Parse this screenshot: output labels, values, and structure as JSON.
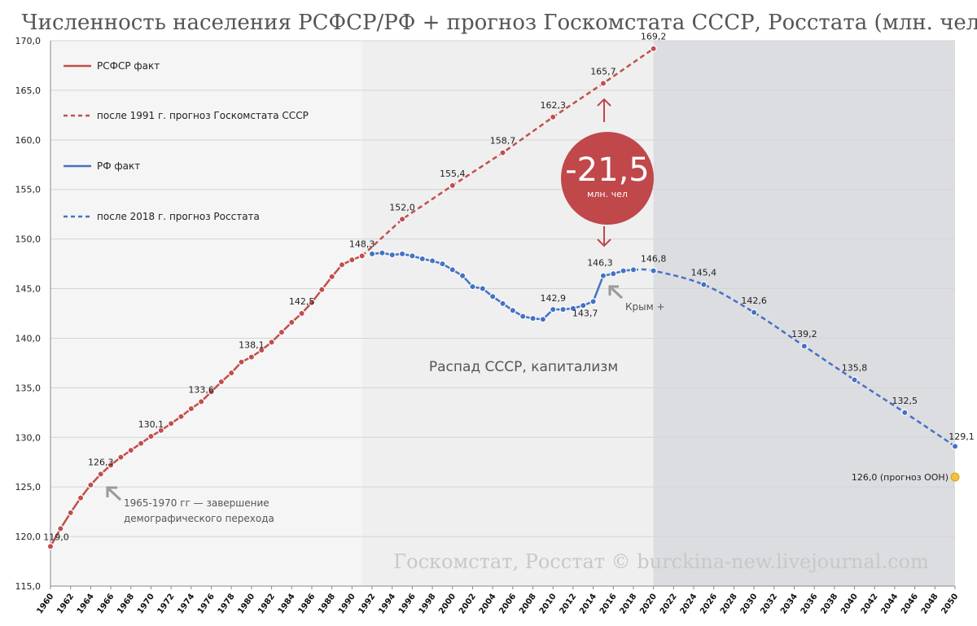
{
  "title": "Численность населения РСФСР/РФ + прогноз Госкомстата СССР, Росстата (млн. чел)",
  "colors": {
    "rsfsr": "#c0504d",
    "rf": "#4472c4",
    "region1": "#efefef",
    "region2": "#dcdde1",
    "badge": "#c0474a",
    "gold": "#f0c040"
  },
  "chart_data": {
    "type": "line",
    "title": "Численность населения РСФСР/РФ + прогноз Госкомстата СССР, Росстата (млн. чел)",
    "xlim": [
      1960,
      2050
    ],
    "ylim": [
      115,
      170
    ],
    "y_ticks": [
      "115,0",
      "120,0",
      "125,0",
      "130,0",
      "135,0",
      "140,0",
      "145,0",
      "150,0",
      "155,0",
      "160,0",
      "165,0",
      "170,0"
    ],
    "x_ticks": [
      "1960",
      "1962",
      "1964",
      "1966",
      "1968",
      "1970",
      "1972",
      "1974",
      "1976",
      "1978",
      "1980",
      "1982",
      "1984",
      "1986",
      "1988",
      "1990",
      "1992",
      "1994",
      "1996",
      "1998",
      "2000",
      "2002",
      "2004",
      "2006",
      "2008",
      "2010",
      "2012",
      "2014",
      "2016",
      "2018",
      "2020",
      "2022",
      "2024",
      "2026",
      "2028",
      "2030",
      "2032",
      "2034",
      "2036",
      "2038",
      "2040",
      "2042",
      "2044",
      "2046",
      "2048",
      "2050"
    ],
    "series": [
      {
        "name": "РСФСР факт",
        "style": "solid",
        "color": "#c0504d",
        "x": [
          1960,
          1961,
          1962,
          1963,
          1964,
          1965,
          1966,
          1967,
          1968,
          1969,
          1970,
          1971,
          1972,
          1973,
          1974,
          1975,
          1976,
          1977,
          1978,
          1979,
          1980,
          1981,
          1982,
          1983,
          1984,
          1985,
          1986,
          1987,
          1988,
          1989,
          1990,
          1991
        ],
        "y": [
          119.0,
          120.8,
          122.4,
          123.9,
          125.2,
          126.3,
          127.2,
          128.0,
          128.7,
          129.4,
          130.1,
          130.7,
          131.4,
          132.1,
          132.9,
          133.6,
          134.6,
          135.6,
          136.5,
          137.6,
          138.1,
          138.8,
          139.6,
          140.6,
          141.6,
          142.5,
          143.6,
          144.9,
          146.2,
          147.4,
          147.9,
          148.3
        ],
        "labels": {
          "1960": "119,0",
          "1965": "126,3",
          "1970": "130,1",
          "1975": "133,6",
          "1980": "138,1",
          "1985": "142,5",
          "1991": "148,3"
        }
      },
      {
        "name": "после 1991 г. прогноз Госкомстата СССР",
        "style": "dashed",
        "color": "#c0504d",
        "x": [
          1991,
          1995,
          2000,
          2005,
          2010,
          2015,
          2020
        ],
        "y": [
          148.3,
          152.0,
          155.4,
          158.7,
          162.3,
          165.7,
          169.2
        ],
        "labels": {
          "1995": "152,0",
          "2000": "155,4",
          "2005": "158,7",
          "2010": "162,3",
          "2015": "165,7",
          "2020": "169,2"
        }
      },
      {
        "name": "РФ факт",
        "style": "solid",
        "color": "#4472c4",
        "x": [
          1992,
          1993,
          1994,
          1995,
          1996,
          1997,
          1998,
          1999,
          2000,
          2001,
          2002,
          2003,
          2004,
          2005,
          2006,
          2007,
          2008,
          2009,
          2010,
          2011,
          2012,
          2013,
          2014,
          2015,
          2016,
          2017,
          2018
        ],
        "y": [
          148.5,
          148.6,
          148.4,
          148.5,
          148.3,
          148.0,
          147.8,
          147.5,
          146.9,
          146.3,
          145.2,
          145.0,
          144.2,
          143.5,
          142.8,
          142.2,
          142.0,
          141.9,
          142.9,
          142.9,
          143.0,
          143.3,
          143.7,
          146.3,
          146.5,
          146.8,
          146.9
        ],
        "labels": {
          "2010": "142,9",
          "2014": "143,7",
          "2015": "146,3"
        }
      },
      {
        "name": "после 2018 г. прогноз Росстата",
        "style": "dashed",
        "color": "#4472c4",
        "x": [
          2018,
          2020,
          2025,
          2030,
          2035,
          2040,
          2045,
          2050
        ],
        "y": [
          146.9,
          146.8,
          145.4,
          142.6,
          139.2,
          135.8,
          132.5,
          129.1
        ],
        "labels": {
          "2020": "146,8",
          "2025": "145,4",
          "2030": "142,6",
          "2035": "139,2",
          "2040": "135,8",
          "2045": "132,5",
          "2050": "129,1"
        }
      }
    ],
    "legend": [
      {
        "label": "РСФСР факт",
        "color": "#c0504d",
        "style": "solid"
      },
      {
        "label": "после 1991 г. прогноз Госкомстата  СССР",
        "color": "#c0504d",
        "style": "dashed"
      },
      {
        "label": "РФ факт",
        "color": "#4472c4",
        "style": "solid"
      },
      {
        "label": "после 2018 г. прогноз Росстата",
        "color": "#4472c4",
        "style": "dashed"
      }
    ],
    "regions": [
      {
        "from": 1991,
        "to": 2020,
        "label": "Распад СССР, капитализм"
      },
      {
        "from": 2020,
        "to": 2050,
        "label": ""
      }
    ],
    "annotations": {
      "demographic_line1": "1965-1970 гг — завершение",
      "demographic_line2": "демографического перехода",
      "crimea": "Крым +",
      "un_forecast": "126,0 (прогноз ООН)",
      "un_value": 126.0,
      "difference_value": "-21,5",
      "difference_unit": "млн. чел",
      "watermark": "Госкомстат, Росстат © burckina-new.livejournal.com"
    }
  }
}
